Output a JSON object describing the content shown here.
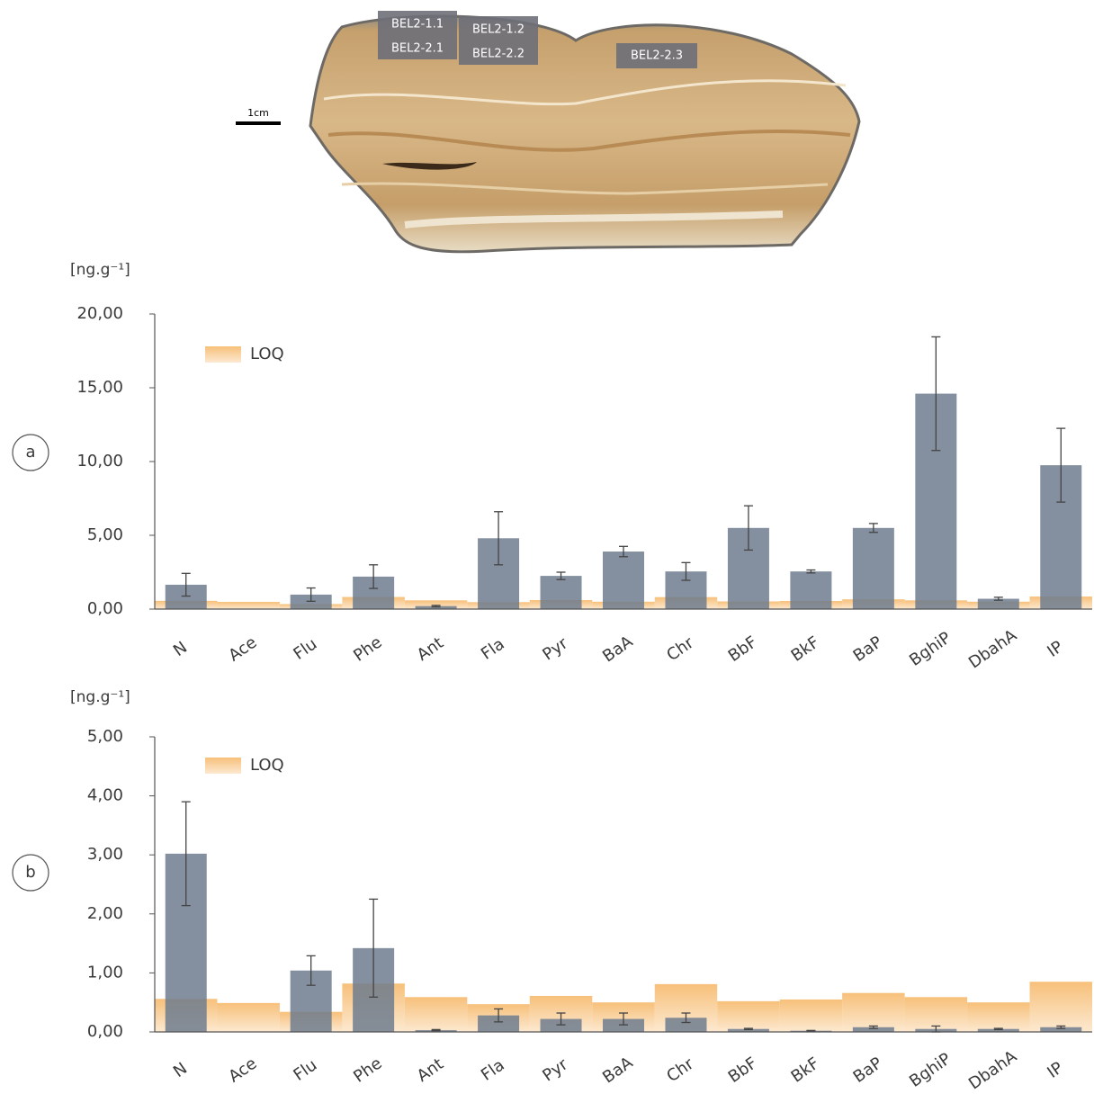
{
  "photo": {
    "labels": [
      "BEL2-1.1",
      "BEL2-1.2",
      "BEL2-2.1",
      "BEL2-2.2",
      "BEL2-2.3"
    ],
    "scale": "1cm"
  },
  "chart_data": [
    {
      "type": "bar",
      "panel": "a",
      "y_label": "[ng.g⁻¹]",
      "categories": [
        "N",
        "Ace",
        "Flu",
        "Phe",
        "Ant",
        "Fla",
        "Pyr",
        "BaA",
        "Chr",
        "BbF",
        "BkF",
        "BaP",
        "BghiP",
        "DbahA",
        "IP"
      ],
      "values": [
        1.65,
        null,
        0.98,
        2.2,
        0.2,
        4.8,
        2.25,
        3.9,
        2.55,
        5.5,
        2.55,
        5.5,
        14.6,
        0.7,
        9.75
      ],
      "errors": [
        0.77,
        null,
        0.45,
        0.8,
        0.05,
        1.8,
        0.25,
        0.35,
        0.6,
        1.5,
        0.1,
        0.3,
        3.85,
        0.1,
        2.5
      ],
      "color": "#6f7d8e",
      "loq": {
        "name": "LOQ",
        "color": "#f7c07a",
        "values": [
          0.56,
          0.49,
          0.34,
          0.82,
          0.59,
          0.47,
          0.61,
          0.5,
          0.81,
          0.52,
          0.55,
          0.66,
          0.59,
          0.5,
          0.85
        ]
      },
      "ylim": [
        0,
        20
      ],
      "yticks": [
        {
          "value": 0,
          "label": "0,00"
        },
        {
          "value": 5,
          "label": "5,00"
        },
        {
          "value": 10,
          "label": "10,00"
        },
        {
          "value": 15,
          "label": "15,00"
        },
        {
          "value": 20,
          "label": "20,00"
        }
      ]
    },
    {
      "type": "bar",
      "panel": "b",
      "y_label": "[ng.g⁻¹]",
      "categories": [
        "N",
        "Ace",
        "Flu",
        "Phe",
        "Ant",
        "Fla",
        "Pyr",
        "BaA",
        "Chr",
        "BbF",
        "BkF",
        "BaP",
        "BghiP",
        "DbahA",
        "IP"
      ],
      "values": [
        3.02,
        null,
        1.04,
        1.42,
        0.03,
        0.28,
        0.22,
        0.22,
        0.24,
        0.05,
        0.02,
        0.08,
        0.05,
        0.05,
        0.08
      ],
      "errors": [
        0.88,
        null,
        0.25,
        0.83,
        0.01,
        0.11,
        0.1,
        0.1,
        0.08,
        0.01,
        0.005,
        0.02,
        0.05,
        0.01,
        0.02
      ],
      "color": "#6f7d8e",
      "loq": {
        "name": "LOQ",
        "color": "#f7c07a",
        "values": [
          0.56,
          0.49,
          0.34,
          0.82,
          0.59,
          0.47,
          0.61,
          0.5,
          0.81,
          0.52,
          0.55,
          0.66,
          0.59,
          0.5,
          0.85
        ]
      },
      "ylim": [
        0,
        5
      ],
      "yticks": [
        {
          "value": 0,
          "label": "0,00"
        },
        {
          "value": 1,
          "label": "1,00"
        },
        {
          "value": 2,
          "label": "2,00"
        },
        {
          "value": 3,
          "label": "3,00"
        },
        {
          "value": 4,
          "label": "4,00"
        },
        {
          "value": 5,
          "label": "5,00"
        }
      ]
    }
  ]
}
